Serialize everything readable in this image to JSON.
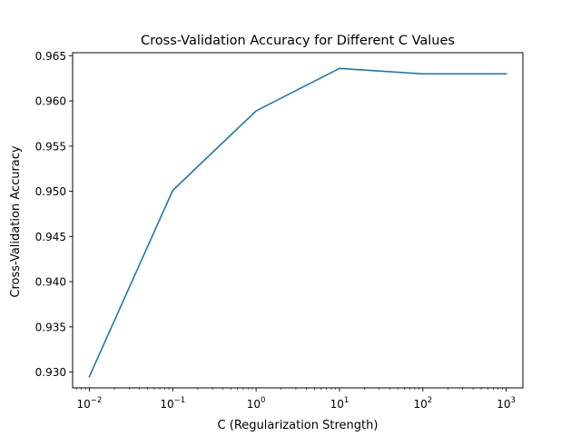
{
  "chart_data": {
    "type": "line",
    "title": "Cross-Validation Accuracy for Different C Values",
    "xlabel": "C (Regularization Strength)",
    "ylabel": "Cross-Validation Accuracy",
    "xscale": "log",
    "xlim": [
      0.0063,
      1585
    ],
    "ylim": [
      0.92825,
      0.96534
    ],
    "grid": false,
    "xticks": [
      {
        "value": 0.01,
        "base": "10",
        "exp": "−2"
      },
      {
        "value": 0.1,
        "base": "10",
        "exp": "−1"
      },
      {
        "value": 1,
        "base": "10",
        "exp": "0"
      },
      {
        "value": 10,
        "base": "10",
        "exp": "1"
      },
      {
        "value": 100,
        "base": "10",
        "exp": "2"
      },
      {
        "value": 1000,
        "base": "10",
        "exp": "3"
      }
    ],
    "yticks": [
      {
        "value": 0.93,
        "label": "0.930"
      },
      {
        "value": 0.935,
        "label": "0.935"
      },
      {
        "value": 0.94,
        "label": "0.940"
      },
      {
        "value": 0.945,
        "label": "0.945"
      },
      {
        "value": 0.95,
        "label": "0.950"
      },
      {
        "value": 0.955,
        "label": "0.955"
      },
      {
        "value": 0.96,
        "label": "0.960"
      },
      {
        "value": 0.965,
        "label": "0.965"
      }
    ],
    "series": [
      {
        "color": "#1f77b4",
        "x": [
          0.01,
          0.1,
          1,
          10,
          100,
          1000
        ],
        "y": [
          0.9295,
          0.9501,
          0.9589,
          0.9636,
          0.963,
          0.963
        ]
      }
    ]
  }
}
